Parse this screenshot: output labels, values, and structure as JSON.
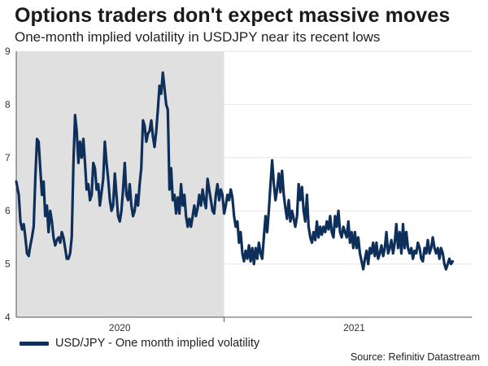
{
  "title": "Options traders don't expect massive moves",
  "subtitle": "One-month implied volatility in USDJPY near its recent lows",
  "source": "Source: Refinitiv Datastream",
  "colors": {
    "line": "#0d2f5a",
    "shade": "#e0e0e0",
    "grid": "#e6e6e6",
    "axis": "#555555"
  },
  "chart_data": {
    "type": "line",
    "title": "Options traders don't expect massive moves",
    "subtitle": "One-month implied volatility in USDJPY near its recent lows",
    "xlabel": "",
    "ylabel": "",
    "xlim": [
      0,
      550
    ],
    "ylim": [
      4,
      9
    ],
    "yticks": [
      4,
      5,
      6,
      7,
      8,
      9
    ],
    "xticks": [
      {
        "label": "2020",
        "at": 125
      },
      {
        "label": "2021",
        "at": 408
      }
    ],
    "shaded_region": {
      "label": "2020",
      "from": 0,
      "to": 251
    },
    "legend": {
      "position": "bottom-left"
    },
    "grid": true,
    "series": [
      {
        "name": "USD/JPY - One month implied volatility",
        "points": [
          [
            0,
            6.55
          ],
          [
            3,
            6.3
          ],
          [
            5,
            5.8
          ],
          [
            7,
            5.65
          ],
          [
            9,
            5.75
          ],
          [
            11,
            5.5
          ],
          [
            13,
            5.2
          ],
          [
            15,
            5.15
          ],
          [
            17,
            5.35
          ],
          [
            19,
            5.5
          ],
          [
            21,
            5.7
          ],
          [
            23,
            6.6
          ],
          [
            25,
            7.35
          ],
          [
            27,
            7.3
          ],
          [
            29,
            6.8
          ],
          [
            31,
            6.3
          ],
          [
            33,
            6.55
          ],
          [
            35,
            5.9
          ],
          [
            37,
            6.1
          ],
          [
            39,
            5.6
          ],
          [
            41,
            6.0
          ],
          [
            43,
            5.8
          ],
          [
            45,
            5.5
          ],
          [
            47,
            5.35
          ],
          [
            49,
            5.45
          ],
          [
            51,
            5.5
          ],
          [
            53,
            5.4
          ],
          [
            55,
            5.6
          ],
          [
            57,
            5.5
          ],
          [
            59,
            5.3
          ],
          [
            61,
            5.1
          ],
          [
            63,
            5.1
          ],
          [
            65,
            5.2
          ],
          [
            67,
            5.5
          ],
          [
            69,
            6.9
          ],
          [
            71,
            7.8
          ],
          [
            73,
            7.5
          ],
          [
            75,
            6.9
          ],
          [
            77,
            7.3
          ],
          [
            79,
            7.0
          ],
          [
            81,
            7.35
          ],
          [
            83,
            6.9
          ],
          [
            85,
            6.4
          ],
          [
            87,
            6.5
          ],
          [
            89,
            6.2
          ],
          [
            91,
            6.3
          ],
          [
            93,
            6.9
          ],
          [
            95,
            6.8
          ],
          [
            97,
            6.4
          ],
          [
            99,
            6.5
          ],
          [
            101,
            6.1
          ],
          [
            103,
            6.35
          ],
          [
            105,
            6.6
          ],
          [
            107,
            7.3
          ],
          [
            109,
            6.9
          ],
          [
            111,
            6.6
          ],
          [
            113,
            6.2
          ],
          [
            115,
            6.0
          ],
          [
            117,
            6.1
          ],
          [
            119,
            6.7
          ],
          [
            121,
            6.3
          ],
          [
            123,
            5.9
          ],
          [
            125,
            5.8
          ],
          [
            127,
            6.0
          ],
          [
            129,
            6.4
          ],
          [
            131,
            6.9
          ],
          [
            133,
            6.3
          ],
          [
            135,
            6.2
          ],
          [
            137,
            6.5
          ],
          [
            139,
            6.1
          ],
          [
            141,
            5.9
          ],
          [
            143,
            6.0
          ],
          [
            145,
            6.3
          ],
          [
            147,
            6.1
          ],
          [
            149,
            6.5
          ],
          [
            151,
            6.8
          ],
          [
            153,
            7.7
          ],
          [
            155,
            7.6
          ],
          [
            157,
            7.3
          ],
          [
            159,
            7.45
          ],
          [
            161,
            7.5
          ],
          [
            163,
            7.7
          ],
          [
            165,
            7.4
          ],
          [
            167,
            7.2
          ],
          [
            169,
            7.5
          ],
          [
            171,
            7.9
          ],
          [
            173,
            8.35
          ],
          [
            175,
            8.2
          ],
          [
            177,
            8.6
          ],
          [
            179,
            8.3
          ],
          [
            181,
            8.0
          ],
          [
            183,
            7.9
          ],
          [
            185,
            6.4
          ],
          [
            187,
            6.8
          ],
          [
            189,
            6.2
          ],
          [
            191,
            6.3
          ],
          [
            193,
            5.95
          ],
          [
            195,
            6.25
          ],
          [
            197,
            5.95
          ],
          [
            199,
            6.5
          ],
          [
            201,
            6.1
          ],
          [
            203,
            6.3
          ],
          [
            205,
            5.9
          ],
          [
            207,
            5.7
          ],
          [
            209,
            5.85
          ],
          [
            211,
            5.7
          ],
          [
            213,
            5.9
          ],
          [
            215,
            6.1
          ],
          [
            217,
            5.9
          ],
          [
            219,
            6.05
          ],
          [
            221,
            6.3
          ],
          [
            223,
            6.1
          ],
          [
            225,
            6.4
          ],
          [
            227,
            6.2
          ],
          [
            229,
            6.05
          ],
          [
            231,
            6.6
          ],
          [
            233,
            6.4
          ],
          [
            235,
            6.2
          ],
          [
            237,
            6.0
          ],
          [
            239,
            5.95
          ],
          [
            241,
            6.3
          ],
          [
            243,
            6.5
          ],
          [
            245,
            6.2
          ],
          [
            247,
            6.4
          ],
          [
            249,
            6.3
          ],
          [
            251,
            5.95
          ],
          [
            253,
            6.1
          ],
          [
            255,
            6.3
          ],
          [
            257,
            6.2
          ],
          [
            259,
            6.4
          ],
          [
            261,
            6.25
          ],
          [
            263,
            5.9
          ],
          [
            265,
            5.7
          ],
          [
            267,
            5.8
          ],
          [
            269,
            5.4
          ],
          [
            271,
            5.6
          ],
          [
            273,
            5.2
          ],
          [
            275,
            5.05
          ],
          [
            277,
            5.25
          ],
          [
            279,
            5.1
          ],
          [
            281,
            5.35
          ],
          [
            283,
            5.05
          ],
          [
            285,
            5.3
          ],
          [
            287,
            5.0
          ],
          [
            289,
            5.3
          ],
          [
            291,
            5.1
          ],
          [
            293,
            5.4
          ],
          [
            295,
            5.2
          ],
          [
            297,
            5.1
          ],
          [
            299,
            5.5
          ],
          [
            301,
            5.9
          ],
          [
            303,
            5.6
          ],
          [
            305,
            6.0
          ],
          [
            307,
            6.5
          ],
          [
            309,
            6.95
          ],
          [
            311,
            6.5
          ],
          [
            313,
            6.2
          ],
          [
            315,
            6.4
          ],
          [
            317,
            6.7
          ],
          [
            319,
            6.35
          ],
          [
            321,
            6.75
          ],
          [
            323,
            6.3
          ],
          [
            325,
            6.05
          ],
          [
            327,
            5.85
          ],
          [
            329,
            6.2
          ],
          [
            331,
            5.8
          ],
          [
            333,
            6.0
          ],
          [
            335,
            5.85
          ],
          [
            337,
            5.7
          ],
          [
            339,
            5.9
          ],
          [
            341,
            6.5
          ],
          [
            343,
            6.2
          ],
          [
            345,
            6.45
          ],
          [
            347,
            6.0
          ],
          [
            349,
            5.8
          ],
          [
            351,
            6.3
          ],
          [
            353,
            5.7
          ],
          [
            355,
            5.5
          ],
          [
            357,
            5.4
          ],
          [
            359,
            5.6
          ],
          [
            361,
            5.45
          ],
          [
            363,
            5.8
          ],
          [
            365,
            5.5
          ],
          [
            367,
            5.7
          ],
          [
            369,
            5.55
          ],
          [
            371,
            5.7
          ],
          [
            373,
            5.6
          ],
          [
            375,
            5.8
          ],
          [
            377,
            5.65
          ],
          [
            379,
            5.9
          ],
          [
            381,
            5.6
          ],
          [
            383,
            5.5
          ],
          [
            385,
            5.9
          ],
          [
            387,
            5.7
          ],
          [
            389,
            6.0
          ],
          [
            391,
            5.6
          ],
          [
            393,
            5.5
          ],
          [
            395,
            5.7
          ],
          [
            397,
            5.6
          ],
          [
            399,
            5.5
          ],
          [
            401,
            5.8
          ],
          [
            403,
            5.4
          ],
          [
            405,
            5.6
          ],
          [
            407,
            5.3
          ],
          [
            409,
            5.6
          ],
          [
            411,
            5.3
          ],
          [
            413,
            5.5
          ],
          [
            415,
            5.2
          ],
          [
            417,
            5.05
          ],
          [
            419,
            4.9
          ],
          [
            421,
            5.1
          ],
          [
            423,
            5.25
          ],
          [
            425,
            5.0
          ],
          [
            427,
            5.3
          ],
          [
            429,
            5.2
          ],
          [
            431,
            5.4
          ],
          [
            433,
            5.15
          ],
          [
            435,
            5.4
          ],
          [
            437,
            5.1
          ],
          [
            439,
            5.2
          ],
          [
            441,
            5.35
          ],
          [
            443,
            5.15
          ],
          [
            445,
            5.3
          ],
          [
            447,
            5.6
          ],
          [
            449,
            5.2
          ],
          [
            451,
            5.3
          ],
          [
            453,
            5.45
          ],
          [
            455,
            5.2
          ],
          [
            457,
            5.4
          ],
          [
            459,
            5.75
          ],
          [
            461,
            5.3
          ],
          [
            463,
            5.6
          ],
          [
            465,
            5.2
          ],
          [
            467,
            5.75
          ],
          [
            469,
            5.3
          ],
          [
            471,
            5.6
          ],
          [
            473,
            5.3
          ],
          [
            475,
            5.2
          ],
          [
            477,
            5.3
          ],
          [
            479,
            5.1
          ],
          [
            481,
            5.25
          ],
          [
            483,
            5.2
          ],
          [
            485,
            5.4
          ],
          [
            487,
            5.3
          ],
          [
            489,
            5.1
          ],
          [
            491,
            5.05
          ],
          [
            493,
            5.3
          ],
          [
            495,
            5.2
          ],
          [
            497,
            5.45
          ],
          [
            499,
            5.2
          ],
          [
            501,
            5.3
          ],
          [
            503,
            5.5
          ],
          [
            505,
            5.3
          ],
          [
            507,
            5.2
          ],
          [
            509,
            5.3
          ],
          [
            511,
            5.1
          ],
          [
            513,
            5.3
          ],
          [
            515,
            5.2
          ],
          [
            517,
            5.0
          ],
          [
            519,
            4.9
          ],
          [
            521,
            5.0
          ],
          [
            523,
            5.1
          ],
          [
            525,
            5.0
          ],
          [
            527,
            5.05
          ]
        ]
      }
    ]
  }
}
